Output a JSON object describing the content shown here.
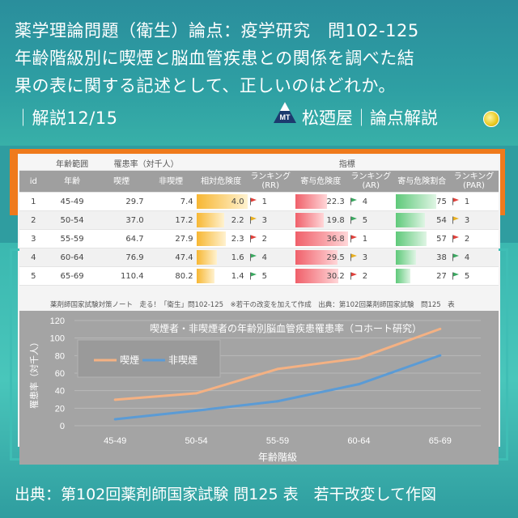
{
  "header": {
    "line1": "薬学理論問題（衛生）論点：疫学研究　問102-125",
    "line2": "年齢階級別に喫煙と脳血管疾患との関係を調べた結",
    "line3": "果の表に関する記述として、正しいのはどれか。",
    "line4": "｜解説12/15",
    "brand": "松廼屋｜論点解説",
    "logo_text": "MT"
  },
  "table": {
    "group_headers": {
      "age_range": "年齢範囲",
      "incidence": "罹患率（対千人）",
      "indicators": "指標"
    },
    "columns": [
      "id",
      "年齢",
      "喫煙",
      "非喫煙",
      "相対危険度",
      "ランキング (RR)",
      "寄与危険度",
      "ランキング (AR)",
      "寄与危険割合",
      "ランキング (PAR)"
    ],
    "rows": [
      {
        "id": "1",
        "age": "45-49",
        "smoke": "29.7",
        "nonsmoke": "7.4",
        "rr": "4.0",
        "rr_rank": "1",
        "rr_flag": "red",
        "ar": "22.3",
        "ar_rank": "4",
        "ar_flag": "green",
        "par": "75",
        "par_rank": "1",
        "par_flag": "red"
      },
      {
        "id": "2",
        "age": "50-54",
        "smoke": "37.0",
        "nonsmoke": "17.2",
        "rr": "2.2",
        "rr_rank": "3",
        "rr_flag": "yellow",
        "ar": "19.8",
        "ar_rank": "5",
        "ar_flag": "green",
        "par": "54",
        "par_rank": "3",
        "par_flag": "yellow"
      },
      {
        "id": "3",
        "age": "55-59",
        "smoke": "64.7",
        "nonsmoke": "27.9",
        "rr": "2.3",
        "rr_rank": "2",
        "rr_flag": "red",
        "ar": "36.8",
        "ar_rank": "1",
        "ar_flag": "red",
        "par": "57",
        "par_rank": "2",
        "par_flag": "red"
      },
      {
        "id": "4",
        "age": "60-64",
        "smoke": "76.9",
        "nonsmoke": "47.4",
        "rr": "1.6",
        "rr_rank": "4",
        "rr_flag": "green",
        "ar": "29.5",
        "ar_rank": "3",
        "ar_flag": "yellow",
        "par": "38",
        "par_rank": "4",
        "par_flag": "green"
      },
      {
        "id": "5",
        "age": "65-69",
        "smoke": "110.4",
        "nonsmoke": "80.2",
        "rr": "1.4",
        "rr_rank": "5",
        "rr_flag": "green",
        "ar": "30.2",
        "ar_rank": "2",
        "ar_flag": "red",
        "par": "27",
        "par_rank": "5",
        "par_flag": "green"
      }
    ],
    "note": "薬剤師国家試験対策ノート　走る！「衛生」問102-125　※若干の改変を加えて作成　出典：第102回薬剤師国家試験　問125　表"
  },
  "colors": {
    "smoke": "#f4b183",
    "nonsmoke": "#5b9bd5",
    "rr_bar": "#f7b733",
    "ar_bar": "#f0606a",
    "par_bar": "#5fc97a",
    "flag_red": "#e0403a",
    "flag_yellow": "#e8b020",
    "flag_green": "#3aa860"
  },
  "chart_data": {
    "type": "line",
    "title": "喫煙者・非喫煙者の年齢別脳血管疾患罹患率（コホート研究）",
    "xlabel": "年齢階級",
    "ylabel": "罹患率（対千人）",
    "categories": [
      "45-49",
      "50-54",
      "55-59",
      "60-64",
      "65-69"
    ],
    "series": [
      {
        "name": "喫煙",
        "values": [
          29.7,
          37.0,
          64.7,
          76.9,
          110.4
        ]
      },
      {
        "name": "非喫煙",
        "values": [
          7.4,
          17.2,
          27.9,
          47.4,
          80.2
        ]
      }
    ],
    "ylim": [
      0,
      120
    ],
    "yticks": [
      "0",
      "20",
      "40",
      "60",
      "80",
      "100",
      "120"
    ],
    "grid": true,
    "legend": "top-left"
  },
  "footer": "出典：第102回薬剤師国家試験 問125 表　若干改変して作図"
}
